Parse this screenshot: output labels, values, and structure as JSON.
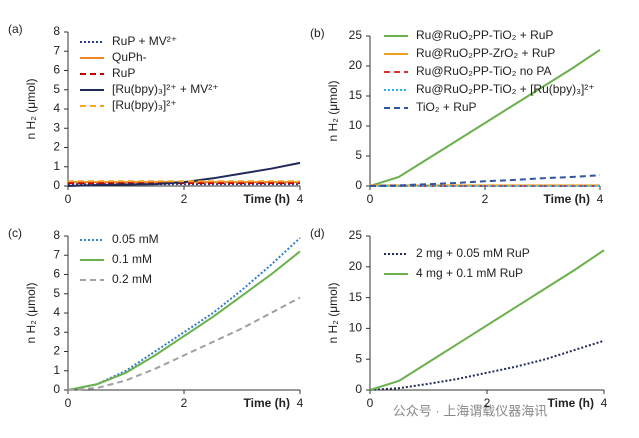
{
  "chart_data": [
    {
      "type": "line",
      "panel_label": "(a)",
      "ylabel": "n H₂ (μmol)",
      "xlabel": "Time (h)",
      "x": [
        0,
        0.5,
        1,
        1.5,
        2,
        2.5,
        3,
        3.5,
        4
      ],
      "xlim": [
        0,
        4
      ],
      "xticks": [
        0,
        2,
        4
      ],
      "ylim": [
        0,
        8
      ],
      "yticks": [
        0,
        1,
        2,
        3,
        4,
        5,
        6,
        7,
        8
      ],
      "series": [
        {
          "name": "RuP + MV²⁺",
          "color": "#2b3f8c",
          "dash": "dotted",
          "values": [
            0.1,
            0.1,
            0.1,
            0.1,
            0.1,
            0.1,
            0.1,
            0.1,
            0.1
          ]
        },
        {
          "name": "QuPh-",
          "color": "#f0862a",
          "dash": "solid",
          "values": [
            0.2,
            0.2,
            0.2,
            0.2,
            0.2,
            0.2,
            0.2,
            0.2,
            0.2
          ]
        },
        {
          "name": "RuP",
          "color": "#c00000",
          "dash": "dashed",
          "values": [
            0.15,
            0.15,
            0.15,
            0.15,
            0.15,
            0.15,
            0.15,
            0.15,
            0.15
          ]
        },
        {
          "name": "[Ru(bpy)₃]²⁺ + MV²⁺",
          "color": "#1f2a5a",
          "dash": "solid",
          "values": [
            0,
            0.05,
            0.08,
            0.1,
            0.2,
            0.4,
            0.65,
            0.9,
            1.2
          ]
        },
        {
          "name": "[Ru(bpy)₃]²⁺",
          "color": "#f5a623",
          "dash": "dashed",
          "values": [
            0.25,
            0.25,
            0.25,
            0.25,
            0.25,
            0.25,
            0.25,
            0.25,
            0.25
          ]
        }
      ]
    },
    {
      "type": "line",
      "panel_label": "(b)",
      "ylabel": "n H₂ (μmol)",
      "xlabel": "Time (h)",
      "x": [
        0,
        0.5,
        1,
        1.5,
        2,
        2.5,
        3,
        3.5,
        4
      ],
      "xlim": [
        0,
        4
      ],
      "xticks": [
        0,
        2,
        4
      ],
      "ylim": [
        0,
        25
      ],
      "yticks": [
        0,
        5,
        10,
        15,
        20,
        25
      ],
      "series": [
        {
          "name": "Ru@RuO₂PP-TiO₂ + RuP",
          "color": "#6ab04c",
          "dash": "solid",
          "values": [
            0,
            1.5,
            4.5,
            7.5,
            10.5,
            13.5,
            16.5,
            19.5,
            22.7
          ]
        },
        {
          "name": "Ru@RuO₂PP-ZrO₂ + RuP",
          "color": "#f0a020",
          "dash": "solid",
          "values": [
            0.1,
            0.1,
            0.1,
            0.1,
            0.1,
            0.1,
            0.1,
            0.1,
            0.1
          ]
        },
        {
          "name": "Ru@RuO₂PP-TiO₂ no PA",
          "color": "#e03030",
          "dash": "dashed",
          "values": [
            0,
            0,
            0,
            0,
            0,
            0,
            0,
            0,
            0
          ]
        },
        {
          "name": "Ru@RuO₂PP-TiO₂ + [Ru(bpy)₃]²⁺",
          "color": "#2ab0e0",
          "dash": "dotted",
          "values": [
            0,
            0,
            0,
            0,
            0,
            0,
            0,
            0,
            0
          ]
        },
        {
          "name": "TiO₂ + RuP",
          "color": "#2f55a4",
          "dash": "dashed",
          "values": [
            0,
            0.1,
            0.3,
            0.5,
            0.8,
            1.0,
            1.3,
            1.5,
            1.8
          ]
        }
      ]
    },
    {
      "type": "line",
      "panel_label": "(c)",
      "ylabel": "n H₂ (μmol)",
      "xlabel": "Time (h)",
      "x": [
        0,
        0.5,
        1,
        1.5,
        2,
        2.5,
        3,
        3.5,
        4
      ],
      "xlim": [
        0,
        4
      ],
      "xticks": [
        0,
        2,
        4
      ],
      "ylim": [
        0,
        8
      ],
      "yticks": [
        0,
        1,
        2,
        3,
        4,
        5,
        6,
        7,
        8
      ],
      "series": [
        {
          "name": "0.05 mM",
          "color": "#2a7fd0",
          "dash": "dotted",
          "values": [
            0,
            0.3,
            1,
            2,
            3,
            4,
            5.2,
            6.5,
            7.9
          ]
        },
        {
          "name": "0.1 mM",
          "color": "#6ab04c",
          "dash": "solid",
          "values": [
            0,
            0.3,
            0.9,
            1.8,
            2.8,
            3.8,
            4.9,
            6,
            7.2
          ]
        },
        {
          "name": "0.2 mM",
          "color": "#a0a0a0",
          "dash": "dashed",
          "values": [
            0,
            0.1,
            0.5,
            1.1,
            1.8,
            2.5,
            3.2,
            4,
            4.8
          ]
        }
      ]
    },
    {
      "type": "line",
      "panel_label": "(d)",
      "ylabel": "n H₂ (μmol)",
      "xlabel": "Time (h)",
      "x": [
        0,
        0.5,
        1,
        1.5,
        2,
        2.5,
        3,
        3.5,
        4
      ],
      "xlim": [
        0,
        4
      ],
      "xticks": [
        0,
        2,
        4
      ],
      "ylim": [
        0,
        25
      ],
      "yticks": [
        0,
        5,
        10,
        15,
        20,
        25
      ],
      "series": [
        {
          "name": "2 mg + 0.05 mM RuP",
          "color": "#1f2a5a",
          "dash": "dotted",
          "values": [
            0,
            0.3,
            1,
            1.8,
            2.8,
            3.8,
            5,
            6.5,
            8
          ]
        },
        {
          "name": "4 mg + 0.1 mM RuP",
          "color": "#6ab04c",
          "dash": "solid",
          "values": [
            0,
            1.5,
            4.5,
            7.5,
            10.5,
            13.5,
            16.5,
            19.5,
            22.7
          ]
        }
      ]
    }
  ],
  "watermark": "公众号 · 上海谓载仪器海讯"
}
